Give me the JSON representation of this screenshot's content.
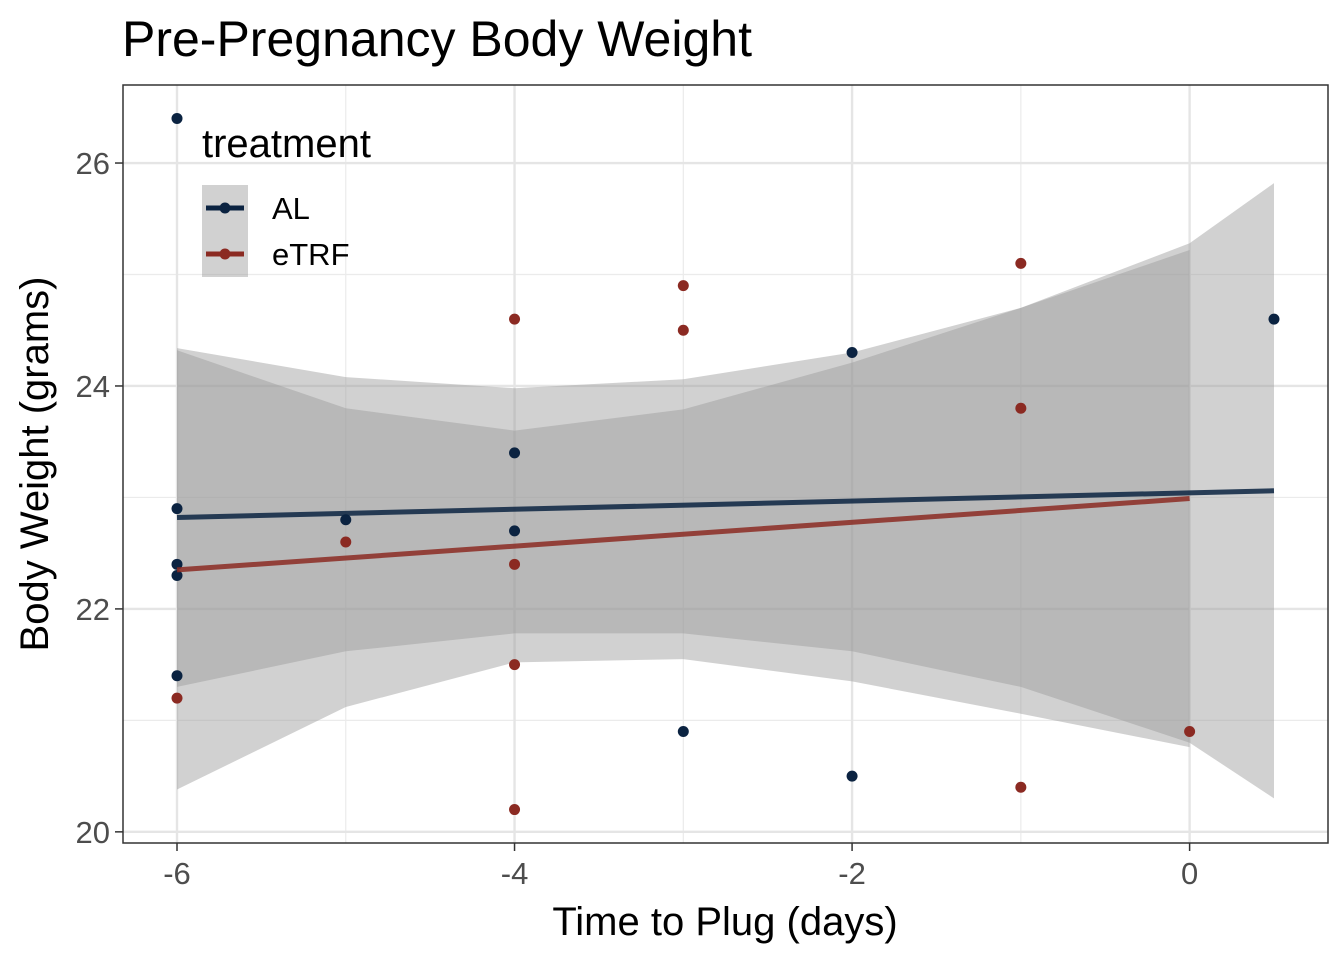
{
  "chart_data": {
    "type": "scatter",
    "title": "Pre-Pregnancy Body Weight",
    "xlabel": "Time to Plug (days)",
    "ylabel": "Body Weight (grams)",
    "xlim": [
      -6.32,
      0.82
    ],
    "ylim": [
      19.9,
      26.7
    ],
    "x_ticks": [
      -6,
      -4,
      -2,
      0
    ],
    "x_tick_labels": [
      "-6",
      "-4",
      "-2",
      "0"
    ],
    "y_ticks": [
      20,
      22,
      24,
      26
    ],
    "y_tick_labels": [
      "20",
      "22",
      "24",
      "26"
    ],
    "grid": true,
    "legend": {
      "title": "treatment",
      "position": "top-left"
    },
    "series": [
      {
        "name": "AL",
        "color": "#0b2341",
        "points": [
          {
            "x": -6,
            "y": 26.4
          },
          {
            "x": -6,
            "y": 22.9
          },
          {
            "x": -6,
            "y": 22.4
          },
          {
            "x": -6,
            "y": 22.3
          },
          {
            "x": -6,
            "y": 21.4
          },
          {
            "x": -5,
            "y": 22.8
          },
          {
            "x": -4,
            "y": 23.4
          },
          {
            "x": -4,
            "y": 22.7
          },
          {
            "x": -3,
            "y": 20.9
          },
          {
            "x": -2,
            "y": 24.3
          },
          {
            "x": -2,
            "y": 20.5
          },
          {
            "x": 0.5,
            "y": 24.6
          }
        ],
        "fit": {
          "x": [
            -6,
            -5,
            -4,
            -3,
            -2,
            -1,
            0,
            0.5
          ],
          "y": [
            22.82,
            22.85,
            22.88,
            22.92,
            22.96,
            23.0,
            23.04,
            23.06
          ],
          "lower": [
            21.3,
            21.62,
            21.78,
            21.78,
            21.62,
            21.3,
            20.8,
            20.3
          ],
          "upper": [
            24.34,
            24.08,
            23.98,
            24.06,
            24.3,
            24.7,
            25.28,
            25.82
          ]
        }
      },
      {
        "name": "eTRF",
        "color": "#8b2a22",
        "points": [
          {
            "x": -6,
            "y": 21.2
          },
          {
            "x": -5,
            "y": 22.6
          },
          {
            "x": -4,
            "y": 24.6
          },
          {
            "x": -4,
            "y": 22.4
          },
          {
            "x": -4,
            "y": 21.5
          },
          {
            "x": -4,
            "y": 20.2
          },
          {
            "x": -3,
            "y": 24.9
          },
          {
            "x": -3,
            "y": 24.5
          },
          {
            "x": -1,
            "y": 25.1
          },
          {
            "x": -1,
            "y": 23.8
          },
          {
            "x": -1,
            "y": 20.4
          },
          {
            "x": 0,
            "y": 20.9
          }
        ],
        "fit": {
          "x": [
            -6,
            -5,
            -4,
            -3,
            -2,
            -1,
            0
          ],
          "y": [
            22.35,
            22.46,
            22.56,
            22.67,
            22.78,
            22.88,
            22.99
          ],
          "lower": [
            20.38,
            21.12,
            21.52,
            21.55,
            21.35,
            21.06,
            20.76
          ],
          "upper": [
            24.32,
            23.8,
            23.6,
            23.79,
            24.21,
            24.7,
            25.22
          ]
        }
      }
    ]
  }
}
